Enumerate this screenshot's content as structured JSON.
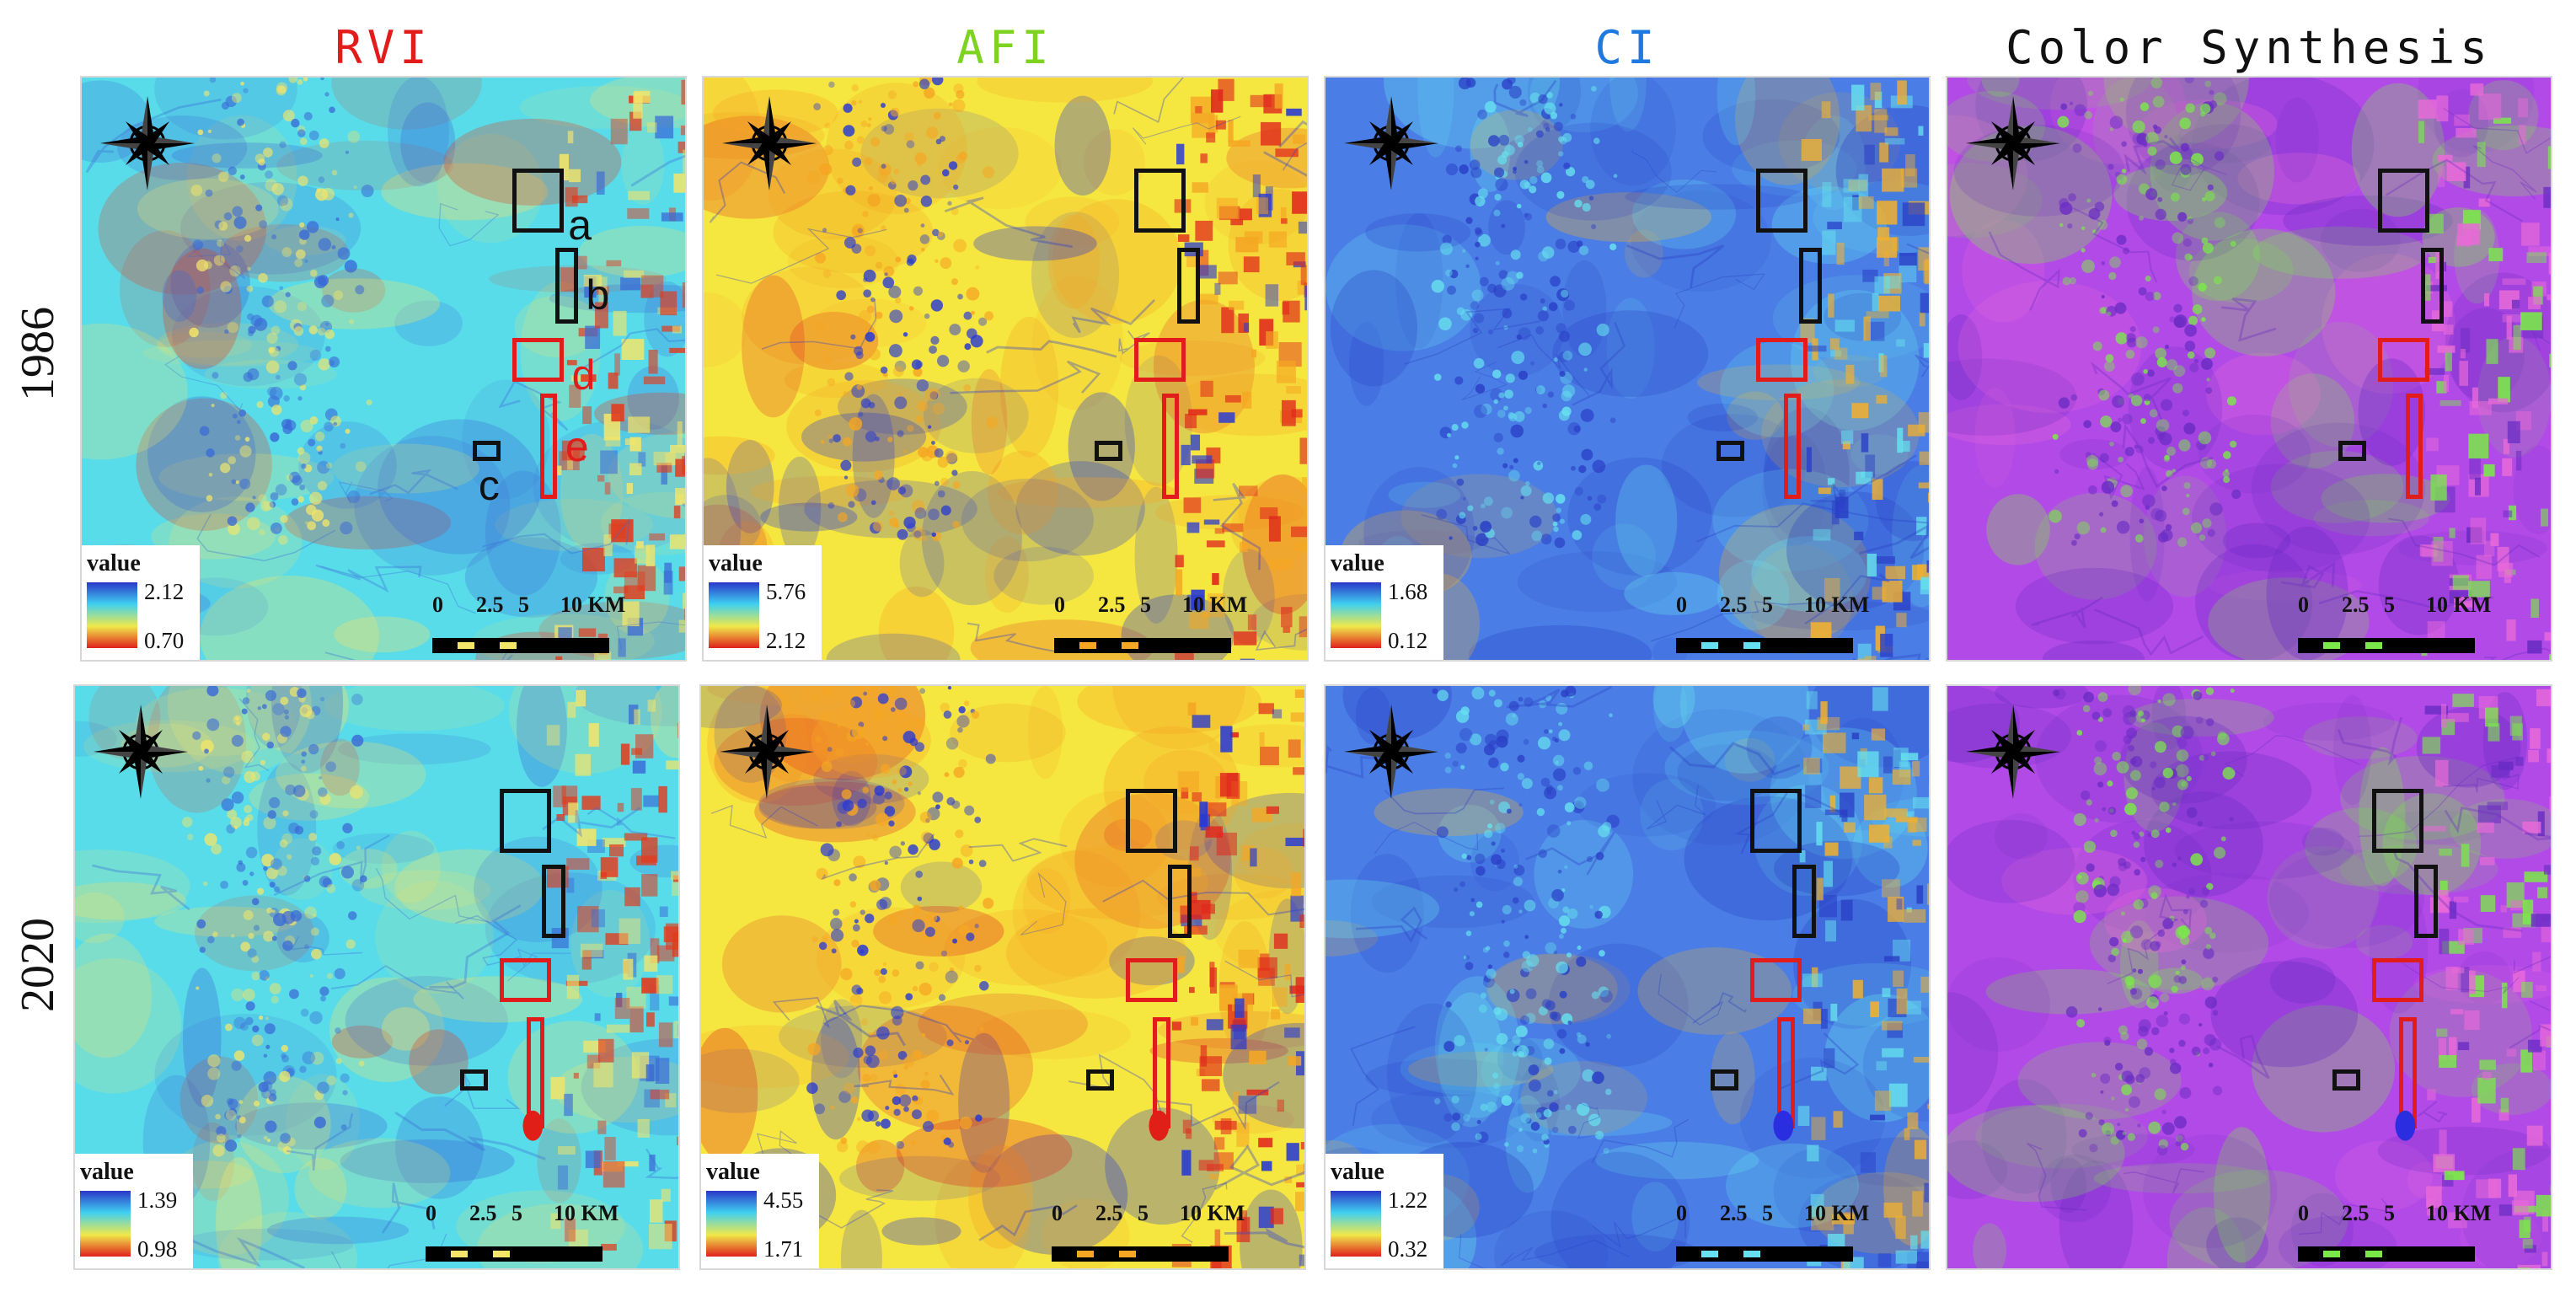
{
  "columns": [
    {
      "title": "RVI",
      "title_color": "#e21b1b"
    },
    {
      "title": "AFI",
      "title_color": "#7ed321"
    },
    {
      "title": "CI",
      "title_color": "#1e7ae0"
    },
    {
      "title": "Color Synthesis",
      "title_color": "#111111"
    }
  ],
  "rows": [
    {
      "label": "1986"
    },
    {
      "label": "2020"
    }
  ],
  "legend": {
    "title": "value",
    "ramp_colors": [
      "#2a36c8",
      "#3fd0f0",
      "#f0e84a",
      "#e0201c"
    ],
    "panels": {
      "1986": {
        "RVI": {
          "max": "2.12",
          "min": "0.70"
        },
        "AFI": {
          "max": "5.76",
          "min": "2.12"
        },
        "CI": {
          "max": "1.68",
          "min": "0.12"
        }
      },
      "2020": {
        "RVI": {
          "max": "1.39",
          "min": "0.98"
        },
        "AFI": {
          "max": "4.55",
          "min": "1.71"
        },
        "CI": {
          "max": "1.22",
          "min": "0.32"
        }
      }
    }
  },
  "scale_bar": {
    "ticks": [
      "0",
      "2.5",
      "5",
      "10 KM"
    ]
  },
  "study_areas": {
    "labels": {
      "a": "a",
      "b": "b",
      "c": "c",
      "d": "d",
      "e": "e"
    },
    "colors": {
      "a": "#111111",
      "b": "#111111",
      "c": "#111111",
      "d": "#e21b1b",
      "e": "#e21b1b"
    }
  },
  "panel_colors": {
    "RVI": {
      "base": "#58dcea",
      "accent": "#f2e56a",
      "dark": "#3a6ad6",
      "hot": "#e23a1c"
    },
    "AFI": {
      "base": "#f6e640",
      "accent": "#f5a623",
      "dark": "#2638d4",
      "hot": "#e0261c"
    },
    "CI": {
      "base": "#4a7ee6",
      "accent": "#66e0ee",
      "dark": "#2a3fc6",
      "hot": "#f0b030"
    },
    "Color Synthesis": {
      "base": "#b24ae8",
      "accent": "#7be84a",
      "dark": "#6a2cc4",
      "hot": "#e86ad8"
    }
  }
}
